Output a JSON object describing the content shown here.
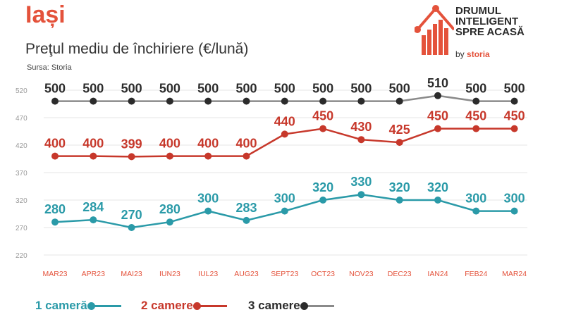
{
  "header": {
    "title": "Iași",
    "subtitle": "Preţul mediu de închiriere (€/lună)",
    "source": "Sursa: Storia"
  },
  "logo": {
    "line1": "DRUMUL",
    "line2": "INTELIGENT",
    "line3": "SPRE ACASĂ",
    "by": "by",
    "brand": "storia"
  },
  "chart_data": {
    "type": "line",
    "categories": [
      "MAR23",
      "APR23",
      "MAI23",
      "IUN23",
      "IUL23",
      "AUG23",
      "SEPT23",
      "OCT23",
      "NOV23",
      "DEC23",
      "IAN24",
      "FEB24",
      "MAR24"
    ],
    "yticks": [
      220,
      270,
      320,
      370,
      420,
      470,
      520
    ],
    "ylim": [
      220,
      520
    ],
    "grid": true,
    "legend_position": "bottom-left",
    "series": [
      {
        "name": "1 cameră",
        "color": "#2a9aa8",
        "values": [
          280,
          284,
          270,
          280,
          300,
          283,
          300,
          320,
          330,
          320,
          320,
          300,
          300
        ]
      },
      {
        "name": "2 camere",
        "color": "#c7382b",
        "values": [
          400,
          400,
          399,
          400,
          400,
          400,
          440,
          450,
          430,
          425,
          450,
          450,
          450
        ]
      },
      {
        "name": "3 camere",
        "color": "#2b2b2b",
        "line_color": "#8a8a8a",
        "values": [
          500,
          500,
          500,
          500,
          500,
          500,
          500,
          500,
          500,
          500,
          510,
          500,
          500
        ]
      }
    ]
  }
}
